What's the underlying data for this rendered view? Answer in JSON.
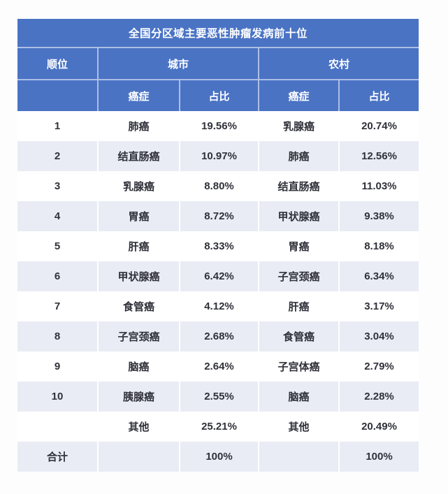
{
  "chart_data": {
    "type": "table",
    "title": "全国分区域主要恶性肿瘤发病前十位",
    "headers": {
      "rank": "顺位",
      "urban_group": "城市",
      "rural_group": "农村",
      "cancer": "癌症",
      "share": "占比"
    },
    "rows": [
      [
        "1",
        "肺癌",
        "19.56%",
        "乳腺癌",
        "20.74%"
      ],
      [
        "2",
        "结直肠癌",
        "10.97%",
        "肺癌",
        "12.56%"
      ],
      [
        "3",
        "乳腺癌",
        "8.80%",
        "结直肠癌",
        "11.03%"
      ],
      [
        "4",
        "胃癌",
        "8.72%",
        "甲状腺癌",
        "9.38%"
      ],
      [
        "5",
        "肝癌",
        "8.33%",
        "胃癌",
        "8.18%"
      ],
      [
        "6",
        "甲状腺癌",
        "6.42%",
        "子宫颈癌",
        "6.34%"
      ],
      [
        "7",
        "食管癌",
        "4.12%",
        "肝癌",
        "3.17%"
      ],
      [
        "8",
        "子宫颈癌",
        "2.68%",
        "食管癌",
        "3.04%"
      ],
      [
        "9",
        "脑癌",
        "2.64%",
        "子宫体癌",
        "2.79%"
      ],
      [
        "10",
        "胰腺癌",
        "2.55%",
        "脑癌",
        "2.28%"
      ],
      [
        "",
        "其他",
        "25.21%",
        "其他",
        "20.49%"
      ],
      [
        "合计",
        "",
        "100%",
        "",
        "100%"
      ]
    ]
  },
  "colors": {
    "header_bg": "#4a73c4",
    "header_text": "#ffffff",
    "stripe_bg": "#e9ecf4",
    "row_bg": "#ffffff",
    "body_text": "#30313a",
    "page_bg": "#fdfdfd",
    "header_line": "#aebfe5"
  }
}
